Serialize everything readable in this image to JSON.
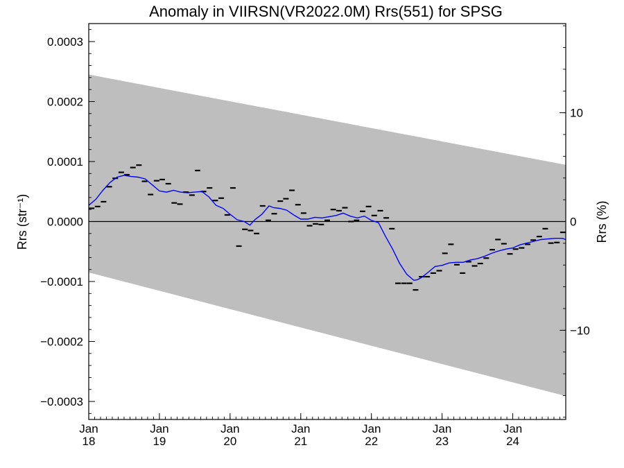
{
  "chart_data": {
    "type": "scatter",
    "title": "Anomaly in VIIRSN(VR2022.0M) Rrs(551) for SPSG",
    "ylabel_left": "Rrs (str⁻¹)",
    "ylabel_right": "Rrs (%)",
    "xlim": [
      2018.0,
      2024.75
    ],
    "ylim": [
      -0.00033,
      0.00033
    ],
    "y2lim": [
      -18.2,
      18.2
    ],
    "grid": false,
    "colors": {
      "band": "#bebebe",
      "smooth_line": "#0000ff",
      "points": "#000000",
      "zero_line": "#000000"
    },
    "yticks_left": [
      {
        "value": 0.0003,
        "label": "0.0003"
      },
      {
        "value": 0.0002,
        "label": "0.0002"
      },
      {
        "value": 0.0001,
        "label": "0.0001"
      },
      {
        "value": 0.0,
        "label": "0.0000"
      },
      {
        "value": -0.0001,
        "label": "−0.0001"
      },
      {
        "value": -0.0002,
        "label": "−0.0002"
      },
      {
        "value": -0.0003,
        "label": "−0.0003"
      }
    ],
    "yticks_right": [
      {
        "value": 10,
        "label": "10"
      },
      {
        "value": 0,
        "label": "0"
      },
      {
        "value": -10,
        "label": "−10"
      }
    ],
    "xticks": [
      {
        "value": 2018.0,
        "month": "Jan",
        "year": "18"
      },
      {
        "value": 2019.0,
        "month": "Jan",
        "year": "19"
      },
      {
        "value": 2020.0,
        "month": "Jan",
        "year": "20"
      },
      {
        "value": 2021.0,
        "month": "Jan",
        "year": "21"
      },
      {
        "value": 2022.0,
        "month": "Jan",
        "year": "22"
      },
      {
        "value": 2023.0,
        "month": "Jan",
        "year": "23"
      },
      {
        "value": 2024.0,
        "month": "Jan",
        "year": "24"
      }
    ],
    "band": {
      "upper": [
        [
          2018.0,
          0.000245
        ],
        [
          2024.75,
          9.45e-05
        ]
      ],
      "lower": [
        [
          2018.0,
          -8.5e-05
        ],
        [
          2024.75,
          -0.000291
        ]
      ]
    },
    "monthly_points": {
      "x": [
        2018.04,
        2018.125,
        2018.21,
        2018.29,
        2018.375,
        2018.46,
        2018.54,
        2018.625,
        2018.71,
        2018.79,
        2018.875,
        2018.96,
        2019.04,
        2019.125,
        2019.21,
        2019.29,
        2019.375,
        2019.46,
        2019.54,
        2019.625,
        2019.71,
        2019.79,
        2019.875,
        2019.96,
        2020.04,
        2020.125,
        2020.21,
        2020.29,
        2020.375,
        2020.46,
        2020.54,
        2020.625,
        2020.71,
        2020.79,
        2020.875,
        2020.96,
        2021.04,
        2021.125,
        2021.21,
        2021.29,
        2021.375,
        2021.46,
        2021.54,
        2021.625,
        2021.71,
        2021.79,
        2021.875,
        2021.96,
        2022.04,
        2022.125,
        2022.21,
        2022.29,
        2022.375,
        2022.46,
        2022.54,
        2022.625,
        2022.71,
        2022.79,
        2022.875,
        2022.96,
        2023.04,
        2023.125,
        2023.21,
        2023.29,
        2023.375,
        2023.46,
        2023.54,
        2023.625,
        2023.71,
        2023.79,
        2023.875,
        2023.96,
        2024.04,
        2024.125,
        2024.21,
        2024.29,
        2024.375,
        2024.46,
        2024.54,
        2024.625,
        2024.71
      ],
      "y": [
        2.2e-05,
        2.5e-05,
        3.3e-05,
        5.8e-05,
        7.2e-05,
        8.2e-05,
        7.8e-05,
        9e-05,
        9.4e-05,
        6.7e-05,
        4.5e-05,
        6.8e-05,
        7e-05,
        6.3e-05,
        3.1e-05,
        2.9e-05,
        4.9e-05,
        4.4e-05,
        8.5e-05,
        5e-05,
        5.6e-05,
        3.5e-05,
        3.9e-05,
        1.1e-05,
        5.6e-05,
        -4.1e-05,
        -1.3e-05,
        -1.5e-05,
        -2e-05,
        2.6e-05,
        2e-06,
        1.3e-05,
        3.4e-05,
        3.8e-05,
        5.2e-05,
        2.8e-05,
        1.4e-05,
        -7e-06,
        -4e-06,
        -5e-06,
        2e-06,
        2e-05,
        1.8e-05,
        2.3e-05,
        0.0,
        2e-06,
        1.7e-05,
        2.5e-05,
        1e-05,
        1.8e-05,
        6e-06,
        -1.2e-05,
        -0.000103,
        -0.000103,
        -0.000103,
        -0.000114,
        -9.2e-05,
        -9.2e-05,
        -8.6e-05,
        -8.2e-05,
        -5.3e-05,
        -3.8e-05,
        -7.2e-05,
        -8.6e-05,
        -6.7e-05,
        -7.4e-05,
        -7e-05,
        -6.1e-05,
        -4.7e-05,
        -3e-05,
        -3.7e-05,
        -5.4e-05,
        -4.6e-05,
        -4.4e-05,
        -3.8e-05,
        -3.1e-05,
        -2.5e-05,
        -1.2e-05,
        -3.6e-05,
        -3.5e-05,
        -1.8e-05
      ]
    },
    "smoothed_series": {
      "x": [
        2018.0,
        2018.1,
        2018.2,
        2018.3,
        2018.4,
        2018.5,
        2018.6,
        2018.7,
        2018.8,
        2018.9,
        2019.0,
        2019.1,
        2019.2,
        2019.3,
        2019.4,
        2019.5,
        2019.6,
        2019.7,
        2019.8,
        2019.9,
        2020.0,
        2020.1,
        2020.2,
        2020.28,
        2020.35,
        2020.45,
        2020.55,
        2020.62,
        2020.7,
        2020.8,
        2020.9,
        2021.0,
        2021.1,
        2021.2,
        2021.3,
        2021.4,
        2021.5,
        2021.6,
        2021.7,
        2021.8,
        2021.9,
        2022.0,
        2022.1,
        2022.2,
        2022.3,
        2022.4,
        2022.5,
        2022.6,
        2022.65,
        2022.7,
        2022.8,
        2022.9,
        2023.0,
        2023.1,
        2023.2,
        2023.3,
        2023.4,
        2023.5,
        2023.6,
        2023.7,
        2023.8,
        2023.9,
        2024.0,
        2024.1,
        2024.2,
        2024.3,
        2024.4,
        2024.5,
        2024.6,
        2024.7,
        2024.75
      ],
      "y": [
        2.7e-05,
        3.7e-05,
        5.2e-05,
        6.5e-05,
        7.4e-05,
        7.7e-05,
        7.5e-05,
        7.4e-05,
        7.1e-05,
        6.1e-05,
        5.1e-05,
        4.9e-05,
        5.2e-05,
        4.9e-05,
        4.8e-05,
        4.9e-05,
        5e-05,
        4.1e-05,
        2.7e-05,
        2.2e-05,
        1.2e-05,
        3e-06,
        0.0,
        -6e-06,
        3e-06,
        1.2e-05,
        2.6e-05,
        2.3e-05,
        2.2e-05,
        1.9e-05,
        1.1e-05,
        4e-06,
        4e-06,
        7e-06,
        6e-06,
        8e-06,
        1e-05,
        1.4e-05,
        9e-06,
        6e-06,
        9e-06,
        2e-06,
        -2e-06,
        -2.5e-05,
        -4.6e-05,
        -7e-05,
        -8.8e-05,
        -9.8e-05,
        -9.7e-05,
        -9.4e-05,
        -8.5e-05,
        -7.5e-05,
        -7.3e-05,
        -6.9e-05,
        -6.8e-05,
        -6.8e-05,
        -6.4e-05,
        -6.2e-05,
        -5.8e-05,
        -5.3e-05,
        -4.9e-05,
        -4.6e-05,
        -4.4e-05,
        -3.9e-05,
        -3.6e-05,
        -3.3e-05,
        -3e-05,
        -2.9e-05,
        -2.8e-05,
        -2.8e-05,
        -3e-05
      ]
    }
  }
}
